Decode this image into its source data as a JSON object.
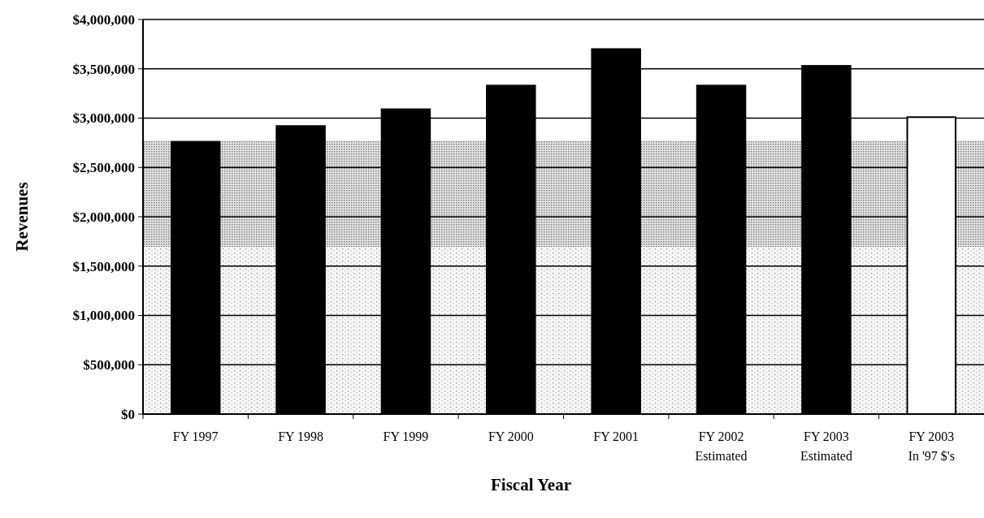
{
  "chart_data": {
    "type": "bar",
    "xlabel": "Fiscal Year",
    "ylabel": "Revenues",
    "categories": [
      "FY 1997",
      "FY 1998",
      "FY 1999",
      "FY 2000",
      "FY 2001",
      "FY 2002\nEstimated",
      "FY 2003\nEstimated",
      "FY 2003\nIn '97 $'s"
    ],
    "values": [
      2760000,
      2920000,
      3090000,
      3330000,
      3700000,
      3330000,
      3530000,
      3010000
    ],
    "colors": [
      "#000000",
      "#000000",
      "#000000",
      "#000000",
      "#000000",
      "#000000",
      "#000000",
      "#ffffff"
    ],
    "ylim": [
      0,
      4000000
    ],
    "yticks": [
      {
        "value": 0,
        "label": "$0"
      },
      {
        "value": 500000,
        "label": "$500,000"
      },
      {
        "value": 1000000,
        "label": "$1,000,000"
      },
      {
        "value": 1500000,
        "label": "$1,500,000"
      },
      {
        "value": 2000000,
        "label": "$2,000,000"
      },
      {
        "value": 2500000,
        "label": "$2,500,000"
      },
      {
        "value": 3000000,
        "label": "$3,000,000"
      },
      {
        "value": 3500000,
        "label": "$3,500,000"
      },
      {
        "value": 4000000,
        "label": "$4,000,000"
      }
    ],
    "grid": "y"
  }
}
